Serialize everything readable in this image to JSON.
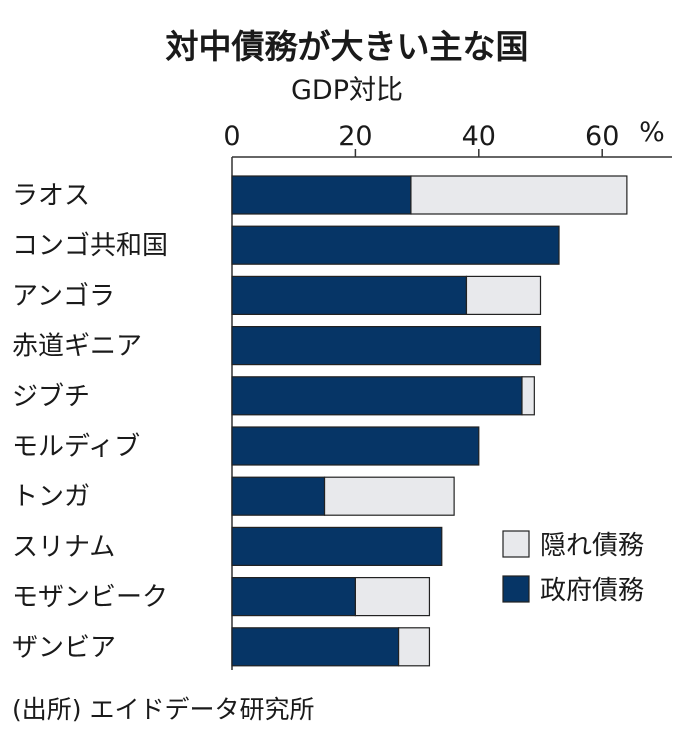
{
  "chart_data": {
    "type": "bar",
    "orientation": "horizontal",
    "stacked": true,
    "title": "対中債務が大きい主な国",
    "subtitle": "GDP対比",
    "unit": "%",
    "xlim": [
      0,
      70
    ],
    "xticks": [
      "0",
      "20",
      "40",
      "60"
    ],
    "categories": [
      "ラオス",
      "コンゴ共和国",
      "アンゴラ",
      "赤道ギニア",
      "ジブチ",
      "モルディブ",
      "トンガ",
      "スリナム",
      "モザンビーク",
      "ザンビア"
    ],
    "series": [
      {
        "name": "政府債務",
        "color": "#063566",
        "values": [
          29,
          53,
          38,
          50,
          47,
          40,
          15,
          34,
          20,
          27
        ]
      },
      {
        "name": "隠れ債務",
        "color": "#e8e9ec",
        "values": [
          35,
          0,
          12,
          0,
          2,
          0,
          21,
          0,
          12,
          5
        ]
      }
    ],
    "legend": {
      "placement": "right",
      "items": [
        "隠れ債務",
        "政府債務"
      ]
    },
    "source": "(出所) エイドデータ研究所"
  }
}
